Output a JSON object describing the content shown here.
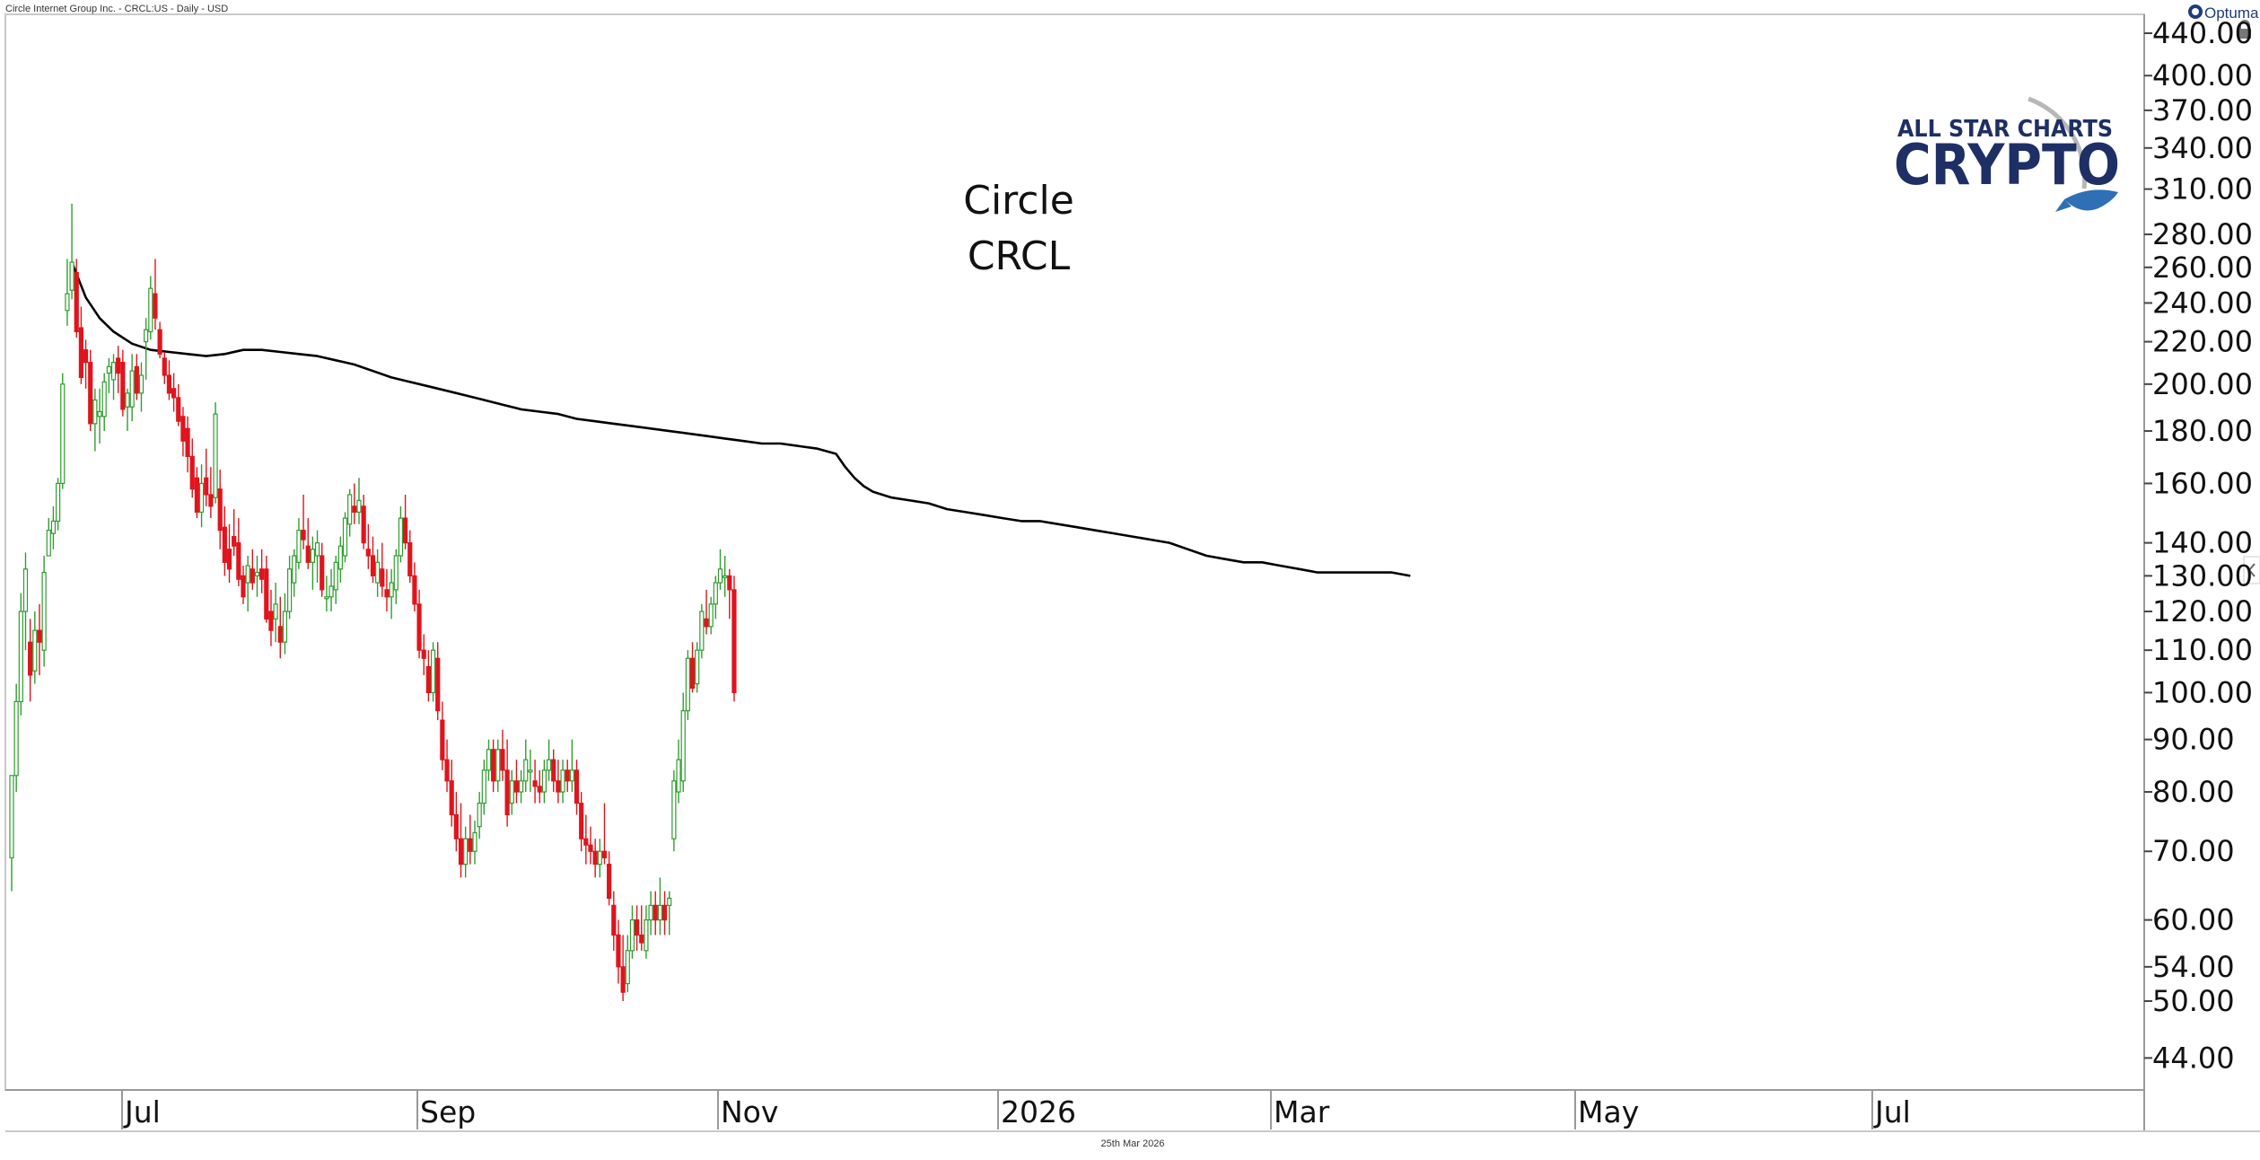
{
  "header": {
    "instrument": "Circle Internet Group Inc. - CRCL:US - Daily - USD",
    "brand": "Optuma"
  },
  "logo": {
    "line1": "ALL STAR CHARTS",
    "line2": "CRYPTO"
  },
  "footer": {
    "date": "25th Mar 2026"
  },
  "colors": {
    "up": "#2e9e2e",
    "down": "#e0141c",
    "ma": "#000000",
    "text": "#111111"
  },
  "chart_data": {
    "type": "candlestick",
    "title": "Circle",
    "subtitle": "CRCL",
    "y_scale": "log",
    "ylim": [
      42,
      445
    ],
    "y_ticks": [
      "440.00",
      "400.00",
      "370.00",
      "340.00",
      "310.00",
      "280.00",
      "260.00",
      "240.00",
      "220.00",
      "200.00",
      "180.00",
      "160.00",
      "140.00",
      "130.00",
      "120.00",
      "110.00",
      "100.00",
      "90.00",
      "80.00",
      "70.00",
      "60.00",
      "54.00",
      "50.00",
      "44.00"
    ],
    "x_ticks": [
      "Jul",
      "Sep",
      "Nov",
      "2026",
      "Mar",
      "May",
      "Jul"
    ],
    "grid": false,
    "legend": "none",
    "candles": [
      [
        69,
        83,
        64,
        83
      ],
      [
        83,
        102,
        80,
        98
      ],
      [
        98,
        125,
        95,
        120
      ],
      [
        120,
        137,
        110,
        132
      ],
      [
        112,
        118,
        98,
        104
      ],
      [
        105,
        120,
        102,
        115
      ],
      [
        115,
        122,
        104,
        112
      ],
      [
        110,
        136,
        106,
        131
      ],
      [
        136,
        148,
        136,
        144
      ],
      [
        143,
        152,
        138,
        147
      ],
      [
        147,
        162,
        144,
        160
      ],
      [
        160,
        205,
        158,
        200
      ],
      [
        236,
        265,
        228,
        245
      ],
      [
        247,
        300,
        242,
        263
      ],
      [
        257,
        265,
        222,
        225
      ],
      [
        227,
        238,
        200,
        203
      ],
      [
        216,
        221,
        198,
        210
      ],
      [
        210,
        216,
        180,
        183
      ],
      [
        183,
        198,
        172,
        193
      ],
      [
        186,
        198,
        175,
        188
      ],
      [
        186,
        205,
        180,
        201
      ],
      [
        205,
        212,
        196,
        208
      ],
      [
        202,
        214,
        193,
        210
      ],
      [
        212,
        218,
        196,
        205
      ],
      [
        210,
        216,
        186,
        189
      ],
      [
        190,
        198,
        180,
        196
      ],
      [
        190,
        214,
        184,
        206
      ],
      [
        208,
        214,
        193,
        196
      ],
      [
        196,
        210,
        188,
        204
      ],
      [
        220,
        232,
        202,
        226
      ],
      [
        225,
        255,
        221,
        248
      ],
      [
        245,
        265,
        226,
        232
      ],
      [
        226,
        230,
        212,
        214
      ],
      [
        212,
        215,
        200,
        204
      ],
      [
        204,
        211,
        193,
        196
      ],
      [
        198,
        205,
        188,
        194
      ],
      [
        194,
        200,
        182,
        184
      ],
      [
        186,
        190,
        170,
        176
      ],
      [
        181,
        186,
        164,
        170
      ],
      [
        170,
        177,
        155,
        158
      ],
      [
        162,
        166,
        148,
        150
      ],
      [
        150,
        167,
        145,
        160
      ],
      [
        162,
        173,
        152,
        156
      ],
      [
        156,
        166,
        148,
        152
      ],
      [
        155,
        192,
        153,
        187
      ],
      [
        158,
        165,
        138,
        144
      ],
      [
        145,
        152,
        130,
        134
      ],
      [
        138,
        146,
        128,
        132
      ],
      [
        142,
        151,
        136,
        139
      ],
      [
        140,
        148,
        127,
        129
      ],
      [
        130,
        133,
        122,
        124
      ],
      [
        128,
        136,
        120,
        133
      ],
      [
        132,
        138,
        126,
        128
      ],
      [
        130,
        136,
        124,
        131
      ],
      [
        132,
        138,
        125,
        129
      ],
      [
        132,
        136,
        117,
        118
      ],
      [
        120,
        126,
        111,
        115
      ],
      [
        118,
        128,
        112,
        122
      ],
      [
        116,
        124,
        108,
        112
      ],
      [
        112,
        125,
        109,
        120
      ],
      [
        120,
        136,
        118,
        132
      ],
      [
        128,
        138,
        124,
        136
      ],
      [
        134,
        148,
        132,
        144
      ],
      [
        144,
        156,
        138,
        141
      ],
      [
        139,
        148,
        132,
        134
      ],
      [
        134,
        142,
        126,
        138
      ],
      [
        136,
        144,
        128,
        140
      ],
      [
        136,
        140,
        124,
        126
      ],
      [
        124,
        130,
        120,
        124
      ],
      [
        124,
        132,
        120,
        127
      ],
      [
        126,
        136,
        122,
        134
      ],
      [
        132,
        142,
        128,
        139
      ],
      [
        136,
        150,
        134,
        148
      ],
      [
        146,
        158,
        142,
        156
      ],
      [
        152,
        160,
        146,
        150
      ],
      [
        150,
        162,
        146,
        154
      ],
      [
        152,
        156,
        138,
        140
      ],
      [
        138,
        146,
        132,
        136
      ],
      [
        136,
        142,
        128,
        130
      ],
      [
        128,
        138,
        124,
        134
      ],
      [
        132,
        140,
        124,
        127
      ],
      [
        126,
        132,
        120,
        124
      ],
      [
        124,
        132,
        118,
        128
      ],
      [
        126,
        138,
        122,
        136
      ],
      [
        136,
        152,
        134,
        148
      ],
      [
        148,
        156,
        138,
        140
      ],
      [
        140,
        144,
        128,
        130
      ],
      [
        130,
        134,
        120,
        122
      ],
      [
        122,
        126,
        108,
        110
      ],
      [
        110,
        114,
        104,
        108
      ],
      [
        106,
        110,
        98,
        100
      ],
      [
        100,
        112,
        98,
        110
      ],
      [
        108,
        112,
        94,
        96
      ],
      [
        94,
        98,
        84,
        86
      ],
      [
        86,
        90,
        80,
        82
      ],
      [
        82,
        86,
        74,
        76
      ],
      [
        76,
        80,
        70,
        72
      ],
      [
        72,
        78,
        66,
        68
      ],
      [
        68,
        74,
        66,
        72
      ],
      [
        72,
        76,
        68,
        70
      ],
      [
        70,
        75,
        68,
        73
      ],
      [
        74,
        80,
        72,
        78
      ],
      [
        78,
        86,
        76,
        84
      ],
      [
        84,
        90,
        82,
        88
      ],
      [
        88,
        90,
        80,
        82
      ],
      [
        82,
        90,
        80,
        88
      ],
      [
        88,
        92,
        82,
        84
      ],
      [
        84,
        90,
        74,
        76
      ],
      [
        78,
        84,
        76,
        82
      ],
      [
        82,
        86,
        78,
        80
      ],
      [
        80,
        84,
        78,
        82
      ],
      [
        82,
        90,
        80,
        86
      ],
      [
        84,
        88,
        80,
        84
      ],
      [
        82,
        86,
        78,
        81
      ],
      [
        81,
        84,
        78,
        80
      ],
      [
        80,
        86,
        78,
        84
      ],
      [
        84,
        90,
        82,
        86
      ],
      [
        86,
        88,
        80,
        82
      ],
      [
        82,
        86,
        78,
        80
      ],
      [
        80,
        86,
        78,
        84
      ],
      [
        84,
        86,
        80,
        82
      ],
      [
        82,
        90,
        80,
        84
      ],
      [
        84,
        86,
        76,
        78
      ],
      [
        78,
        80,
        70,
        72
      ],
      [
        72,
        76,
        68,
        71
      ],
      [
        71,
        74,
        68,
        70
      ],
      [
        70,
        72,
        66,
        68
      ],
      [
        68,
        72,
        66,
        70
      ],
      [
        70,
        78,
        68,
        69
      ],
      [
        68,
        70,
        62,
        63
      ],
      [
        62,
        64,
        56,
        58
      ],
      [
        58,
        60,
        52,
        54
      ],
      [
        54,
        58,
        50,
        51
      ],
      [
        52,
        58,
        51,
        56
      ],
      [
        56,
        62,
        55,
        60
      ],
      [
        60,
        62,
        56,
        58
      ],
      [
        58,
        62,
        56,
        57
      ],
      [
        56,
        62,
        55,
        60
      ],
      [
        60,
        64,
        58,
        62
      ],
      [
        62,
        64,
        58,
        60
      ],
      [
        60,
        66,
        58,
        62
      ],
      [
        62,
        64,
        58,
        60
      ],
      [
        62,
        64,
        58,
        63
      ],
      [
        72,
        84,
        70,
        82
      ],
      [
        80,
        90,
        78,
        86
      ],
      [
        82,
        100,
        80,
        96
      ],
      [
        96,
        110,
        94,
        108
      ],
      [
        108,
        112,
        100,
        101
      ],
      [
        102,
        112,
        100,
        110
      ],
      [
        110,
        122,
        108,
        120
      ],
      [
        118,
        126,
        114,
        116
      ],
      [
        116,
        124,
        114,
        122
      ],
      [
        122,
        130,
        118,
        128
      ],
      [
        128,
        138,
        126,
        132
      ],
      [
        130,
        136,
        124,
        130
      ],
      [
        130,
        132,
        118,
        126
      ],
      [
        126,
        130,
        98,
        100
      ]
    ],
    "ma": [
      [
        13,
        263
      ],
      [
        16,
        243
      ],
      [
        19,
        232
      ],
      [
        22,
        225
      ],
      [
        26,
        219
      ],
      [
        30,
        216
      ],
      [
        34,
        215
      ],
      [
        38,
        214
      ],
      [
        42,
        213
      ],
      [
        46,
        214
      ],
      [
        50,
        216
      ],
      [
        54,
        216
      ],
      [
        58,
        215
      ],
      [
        62,
        214
      ],
      [
        66,
        213
      ],
      [
        70,
        211
      ],
      [
        74,
        209
      ],
      [
        78,
        206
      ],
      [
        82,
        203
      ],
      [
        86,
        201
      ],
      [
        90,
        199
      ],
      [
        94,
        197
      ],
      [
        98,
        195
      ],
      [
        102,
        193
      ],
      [
        106,
        191
      ],
      [
        110,
        189
      ],
      [
        114,
        188
      ],
      [
        118,
        187
      ],
      [
        122,
        185
      ],
      [
        126,
        184
      ],
      [
        130,
        183
      ],
      [
        134,
        182
      ],
      [
        138,
        181
      ],
      [
        142,
        180
      ],
      [
        146,
        179
      ],
      [
        150,
        178
      ],
      [
        154,
        177
      ],
      [
        158,
        176
      ],
      [
        162,
        175
      ],
      [
        166,
        175
      ],
      [
        170,
        174
      ],
      [
        174,
        173
      ],
      [
        178,
        171
      ],
      [
        180,
        166
      ],
      [
        182,
        162
      ],
      [
        184,
        159
      ],
      [
        186,
        157
      ],
      [
        190,
        155
      ],
      [
        194,
        154
      ],
      [
        198,
        153
      ],
      [
        202,
        151
      ],
      [
        206,
        150
      ],
      [
        210,
        149
      ],
      [
        214,
        148
      ],
      [
        218,
        147
      ],
      [
        222,
        147
      ],
      [
        226,
        146
      ],
      [
        230,
        145
      ],
      [
        234,
        144
      ],
      [
        238,
        143
      ],
      [
        242,
        142
      ],
      [
        246,
        141
      ],
      [
        250,
        140
      ],
      [
        254,
        138
      ],
      [
        258,
        136
      ],
      [
        262,
        135
      ],
      [
        266,
        134
      ],
      [
        270,
        134
      ],
      [
        274,
        133
      ],
      [
        278,
        132
      ],
      [
        282,
        131
      ],
      [
        286,
        131
      ],
      [
        290,
        131
      ],
      [
        294,
        131
      ],
      [
        298,
        131
      ],
      [
        302,
        130
      ]
    ]
  }
}
